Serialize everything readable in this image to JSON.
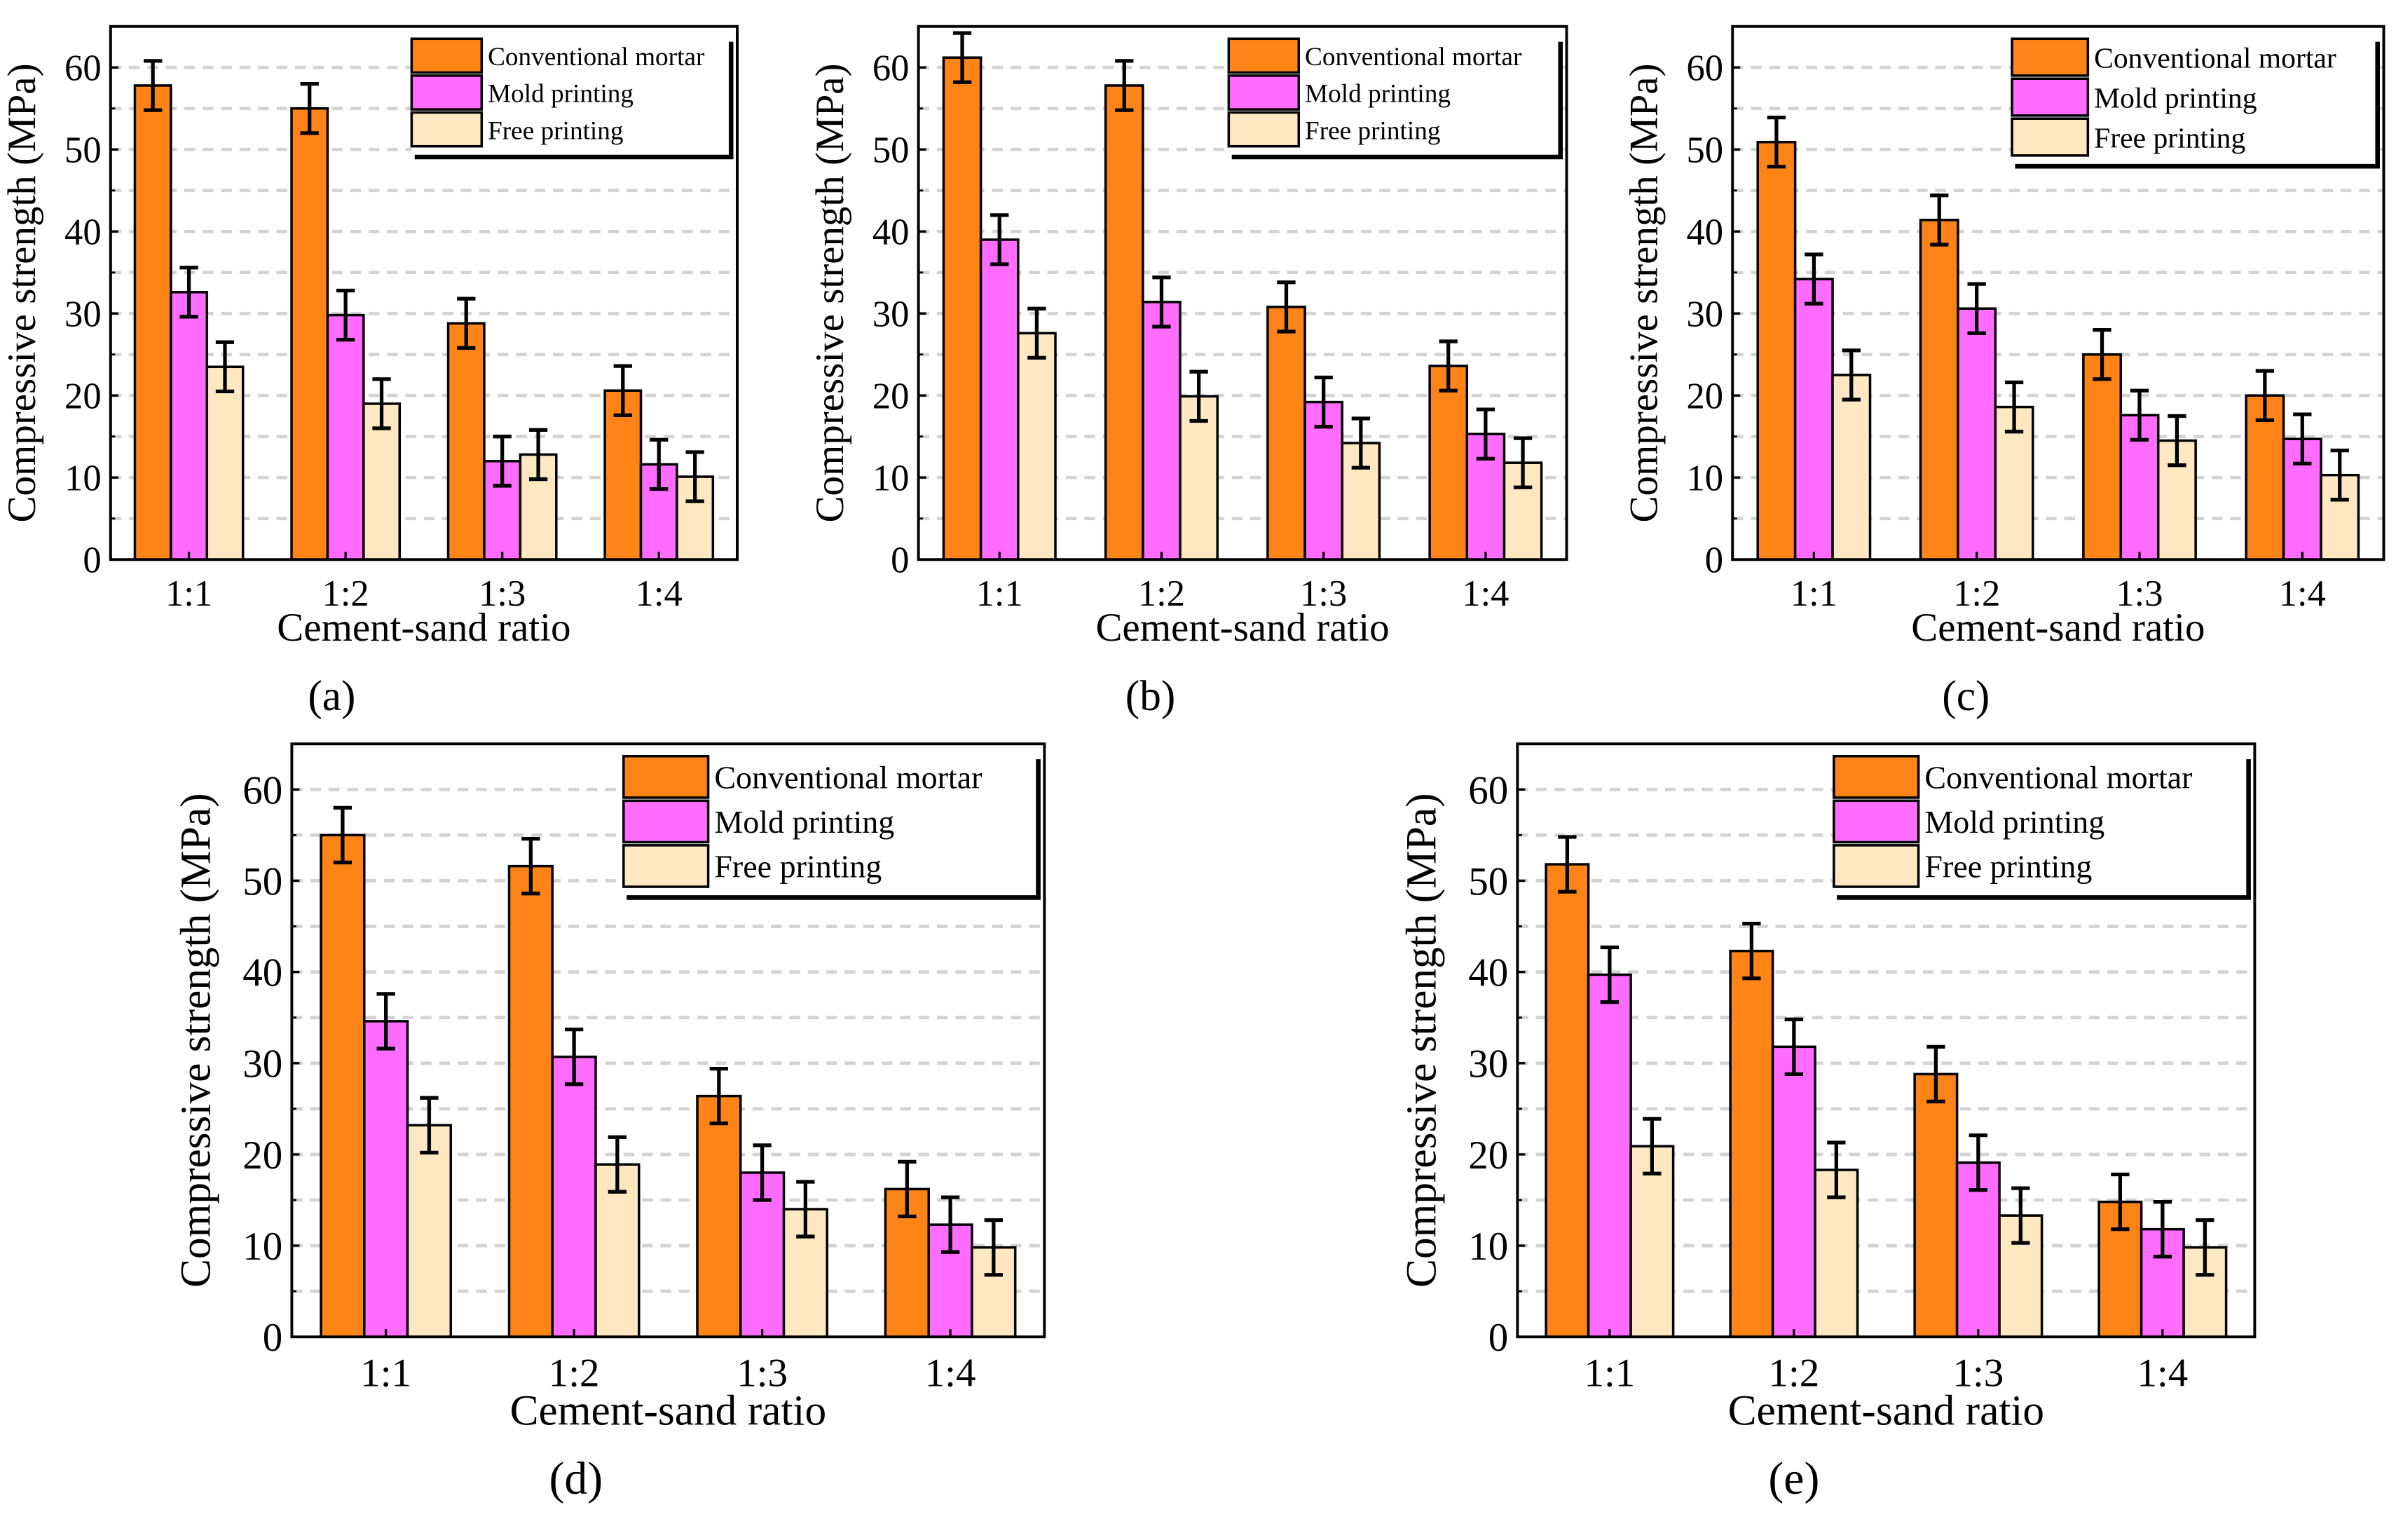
{
  "chart_data": [
    {
      "panel_label": "(a)",
      "type": "bar",
      "xlabel": "Cement-sand ratio",
      "ylabel": "Compressive strength (MPa)",
      "ylim": [
        0,
        65
      ],
      "yticks": [
        "0",
        "10",
        "20",
        "30",
        "40",
        "50",
        "60"
      ],
      "grid": "dashed horizontal every 5",
      "legend": "top-right",
      "categories": [
        "1:1",
        "1:2",
        "1:3",
        "1:4"
      ],
      "series": [
        {
          "name": "Conventional mortar",
          "color": "#FF8418",
          "values": [
            57.8,
            55.0,
            28.8,
            20.6
          ],
          "errors": [
            3,
            3,
            3,
            3
          ]
        },
        {
          "name": "Mold printing",
          "color": "#FF6CFF",
          "values": [
            32.6,
            29.8,
            12.0,
            11.6
          ],
          "errors": [
            3,
            3,
            3,
            3
          ]
        },
        {
          "name": "Free printing",
          "color": "#FDE8C2",
          "values": [
            23.5,
            19.0,
            12.8,
            10.1
          ],
          "errors": [
            3,
            3,
            3,
            3
          ]
        }
      ]
    },
    {
      "panel_label": "(b)",
      "type": "bar",
      "xlabel": "Cement-sand ratio",
      "ylabel": "Compressive strength (MPa)",
      "ylim": [
        0,
        65
      ],
      "yticks": [
        "0",
        "10",
        "20",
        "30",
        "40",
        "50",
        "60"
      ],
      "grid": "dashed horizontal every 5",
      "legend": "top-right",
      "categories": [
        "1:1",
        "1:2",
        "1:3",
        "1:4"
      ],
      "series": [
        {
          "name": "Conventional mortar",
          "color": "#FF8418",
          "values": [
            61.2,
            57.8,
            30.8,
            23.6
          ],
          "errors": [
            3,
            3,
            3,
            3
          ]
        },
        {
          "name": "Mold printing",
          "color": "#FF6CFF",
          "values": [
            39.0,
            31.4,
            19.2,
            15.3
          ],
          "errors": [
            3,
            3,
            3,
            3
          ]
        },
        {
          "name": "Free printing",
          "color": "#FDE8C2",
          "values": [
            27.6,
            19.9,
            14.2,
            11.8
          ],
          "errors": [
            3,
            3,
            3,
            3
          ]
        }
      ]
    },
    {
      "panel_label": "(c)",
      "type": "bar",
      "xlabel": "Cement-sand ratio",
      "ylabel": "Compressive strength (MPa)",
      "ylim": [
        0,
        65
      ],
      "yticks": [
        "0",
        "10",
        "20",
        "30",
        "40",
        "50",
        "60"
      ],
      "grid": "dashed horizontal every 5",
      "legend": "top-right",
      "categories": [
        "1:1",
        "1:2",
        "1:3",
        "1:4"
      ],
      "series": [
        {
          "name": "Conventional mortar",
          "color": "#FF8418",
          "values": [
            50.9,
            41.4,
            25.0,
            20.0
          ],
          "errors": [
            3,
            3,
            3,
            3
          ]
        },
        {
          "name": "Mold printing",
          "color": "#FF6CFF",
          "values": [
            34.2,
            30.6,
            17.6,
            14.7
          ],
          "errors": [
            3,
            3,
            3,
            3
          ]
        },
        {
          "name": "Free printing",
          "color": "#FDE8C2",
          "values": [
            22.5,
            18.6,
            14.5,
            10.3
          ],
          "errors": [
            3,
            3,
            3,
            3
          ]
        }
      ]
    },
    {
      "panel_label": "(d)",
      "type": "bar",
      "xlabel": "Cement-sand ratio",
      "ylabel": "Compressive strength (MPa)",
      "ylim": [
        0,
        65
      ],
      "yticks": [
        "0",
        "10",
        "20",
        "30",
        "40",
        "50",
        "60"
      ],
      "grid": "dashed horizontal every 5",
      "legend": "top-right",
      "categories": [
        "1:1",
        "1:2",
        "1:3",
        "1:4"
      ],
      "series": [
        {
          "name": "Conventional mortar",
          "color": "#FF8418",
          "values": [
            55.0,
            51.6,
            26.4,
            16.2
          ],
          "errors": [
            3,
            3,
            3,
            3
          ]
        },
        {
          "name": "Mold printing",
          "color": "#FF6CFF",
          "values": [
            34.6,
            30.7,
            18.0,
            12.3
          ],
          "errors": [
            3,
            3,
            3,
            3
          ]
        },
        {
          "name": "Free printing",
          "color": "#FDE8C2",
          "values": [
            23.2,
            18.9,
            14.0,
            9.8
          ],
          "errors": [
            3,
            3,
            3,
            3
          ]
        }
      ]
    },
    {
      "panel_label": "(e)",
      "type": "bar",
      "xlabel": "Cement-sand ratio",
      "ylabel": "Compressive strength (MPa)",
      "ylim": [
        0,
        65
      ],
      "yticks": [
        "0",
        "10",
        "20",
        "30",
        "40",
        "50",
        "60"
      ],
      "grid": "dashed horizontal every 5",
      "legend": "top-right",
      "categories": [
        "1:1",
        "1:2",
        "1:3",
        "1:4"
      ],
      "series": [
        {
          "name": "Conventional mortar",
          "color": "#FF8418",
          "values": [
            51.8,
            42.3,
            28.8,
            14.8
          ],
          "errors": [
            3,
            3,
            3,
            3
          ]
        },
        {
          "name": "Mold printing",
          "color": "#FF6CFF",
          "values": [
            39.7,
            31.8,
            19.1,
            11.8
          ],
          "errors": [
            3,
            3,
            3,
            3
          ]
        },
        {
          "name": "Free printing",
          "color": "#FDE8C2",
          "values": [
            20.9,
            18.3,
            13.3,
            9.8
          ],
          "errors": [
            3,
            3,
            3,
            3
          ]
        }
      ]
    }
  ]
}
